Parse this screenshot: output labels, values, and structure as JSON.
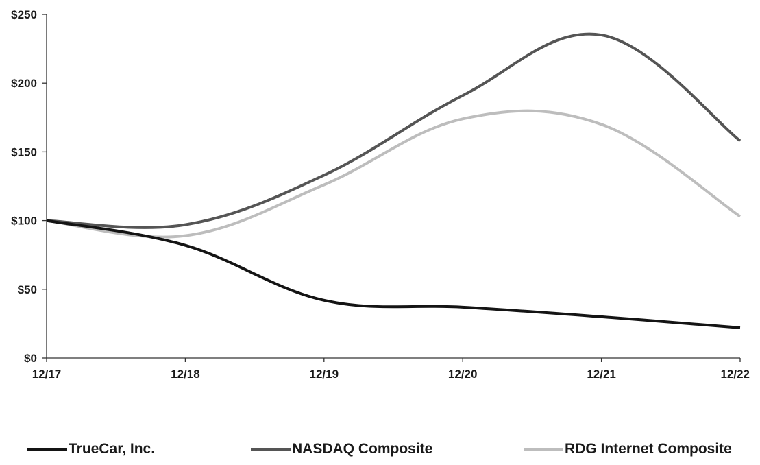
{
  "chart_data": {
    "type": "line",
    "title": "",
    "xlabel": "",
    "ylabel": "",
    "categories": [
      "12/17",
      "12/18",
      "12/19",
      "12/20",
      "12/21",
      "12/22"
    ],
    "yticks": [
      "$0",
      "$50",
      "$100",
      "$150",
      "$200",
      "$250"
    ],
    "ylim": [
      0,
      250
    ],
    "grid": false,
    "legend_position": "bottom",
    "series": [
      {
        "name": "TrueCar, Inc.",
        "color": "#141414",
        "values": [
          100,
          82,
          42,
          37,
          30,
          22
        ]
      },
      {
        "name": "NASDAQ Composite",
        "color": "#555555",
        "values": [
          100,
          97,
          133,
          191,
          235,
          158
        ]
      },
      {
        "name": "RDG Internet Composite",
        "color": "#bdbdbd",
        "values": [
          100,
          89,
          126,
          174,
          170,
          103
        ]
      }
    ]
  }
}
